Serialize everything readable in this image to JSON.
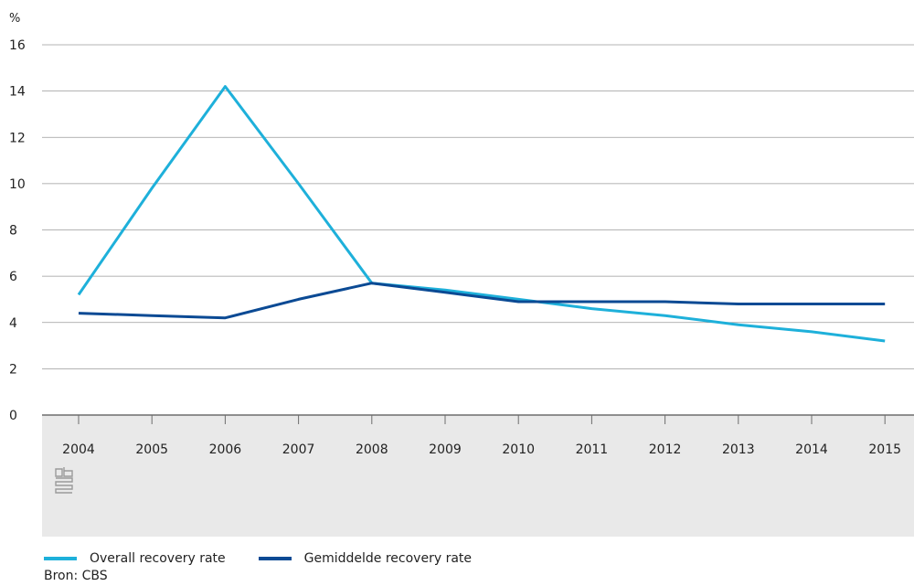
{
  "chart_data": {
    "type": "line",
    "unit_label": "%",
    "ylim": [
      0,
      16
    ],
    "yticks": [
      0,
      2,
      4,
      6,
      8,
      10,
      12,
      14,
      16
    ],
    "x": [
      "2004",
      "2005",
      "2006",
      "2007",
      "2008",
      "2009",
      "2010",
      "2011",
      "2012",
      "2013",
      "2014",
      "2015"
    ],
    "series": [
      {
        "name": "Overall recovery rate",
        "color": "#1eb0da",
        "values": [
          5.2,
          9.8,
          14.2,
          10.0,
          5.7,
          5.4,
          5.0,
          4.6,
          4.3,
          3.9,
          3.6,
          3.2
        ]
      },
      {
        "name": "Gemiddelde recovery rate",
        "color": "#0b4a94",
        "values": [
          4.4,
          4.3,
          4.2,
          5.0,
          5.7,
          5.3,
          4.9,
          4.9,
          4.9,
          4.8,
          4.8,
          4.8
        ]
      }
    ],
    "grid": true,
    "legend_position": "bottom-left"
  },
  "source_text": "Bron: CBS",
  "logo_icon": "cbs-logo-icon",
  "colors": {
    "axis_band": "#e9e9e9",
    "grid": "#9a9a9a"
  }
}
